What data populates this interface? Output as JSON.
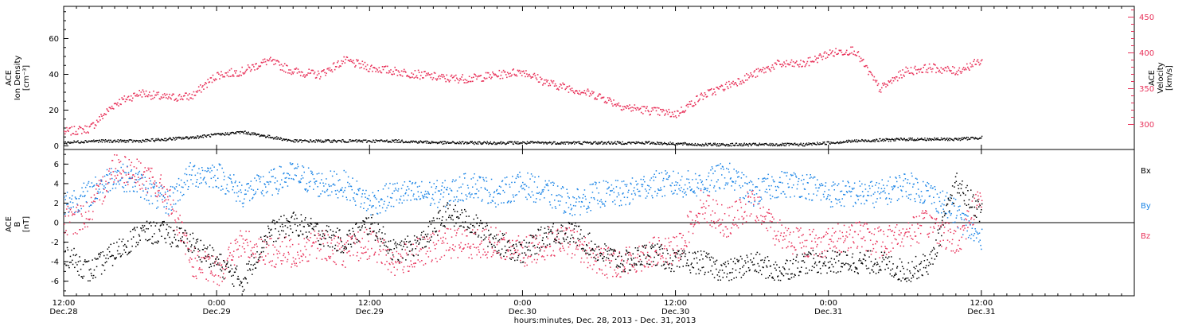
{
  "colors": {
    "axis": "#000000",
    "density": "#000000",
    "velocity": "#e8325a",
    "bx": "#000000",
    "by": "#1a84e6",
    "bz": "#e8325a"
  },
  "chart_data": [
    {
      "type": "scatter",
      "panel": "top",
      "ylabel_left": [
        "ACE",
        "Ion Density",
        "[cm⁻³]"
      ],
      "ylabel_right": [
        "ACE",
        "Velocity",
        "[km/s]"
      ],
      "x_range_hours": [
        0,
        84
      ],
      "x_data_end_hours": 72,
      "ylim_left": [
        -2,
        78
      ],
      "ylim_right": [
        265,
        465
      ],
      "yticks_left": [
        "0",
        "20",
        "40",
        "60"
      ],
      "yticks_right": [
        "300",
        "350",
        "400",
        "450"
      ],
      "series": [
        {
          "name": "Ion Density",
          "axis": "left",
          "color": "#000000",
          "x": [
            0,
            2,
            6,
            10,
            14,
            18,
            22,
            26,
            30,
            34,
            38,
            42,
            46,
            50,
            54,
            58,
            62,
            66,
            70,
            72
          ],
          "y": [
            2,
            3,
            3,
            5,
            8,
            3,
            3,
            3,
            2,
            2,
            2,
            2,
            2,
            1,
            1,
            1,
            3,
            4,
            4,
            5
          ]
        },
        {
          "name": "Velocity",
          "axis": "right",
          "color": "#e8325a",
          "x": [
            0,
            2,
            4,
            6,
            8,
            10,
            12,
            14,
            16,
            18,
            20,
            22,
            24,
            26,
            28,
            30,
            32,
            34,
            36,
            38,
            40,
            42,
            44,
            46,
            48,
            50,
            52,
            54,
            56,
            58,
            60,
            62,
            64,
            66,
            68,
            70,
            72
          ],
          "y": [
            290,
            295,
            330,
            345,
            338,
            340,
            370,
            375,
            390,
            375,
            370,
            390,
            380,
            375,
            370,
            365,
            365,
            370,
            375,
            358,
            350,
            340,
            325,
            320,
            315,
            340,
            355,
            370,
            385,
            385,
            400,
            405,
            350,
            375,
            380,
            375,
            390
          ]
        }
      ]
    },
    {
      "type": "scatter",
      "panel": "bottom",
      "ylabel_left": [
        "ACE",
        "B",
        "[nT]"
      ],
      "x_range_hours": [
        0,
        84
      ],
      "x_data_end_hours": 72,
      "ylim": [
        -7.5,
        7.5
      ],
      "yticks": [
        "-6",
        "-4",
        "-2",
        "0",
        "2",
        "4",
        "6"
      ],
      "series": [
        {
          "name": "Bx",
          "color": "#000000",
          "x": [
            0,
            2,
            4,
            6,
            8,
            10,
            12,
            14,
            16,
            18,
            20,
            22,
            24,
            26,
            28,
            30,
            32,
            34,
            36,
            38,
            40,
            42,
            44,
            46,
            48,
            50,
            52,
            54,
            56,
            58,
            60,
            62,
            64,
            66,
            68,
            70,
            72
          ],
          "y": [
            -3,
            -5,
            -3,
            -1,
            -1,
            -2,
            -4,
            -6,
            -1,
            0,
            -1,
            -2,
            0,
            -3,
            -2,
            1,
            0,
            -2,
            -3,
            -1,
            -1,
            -3,
            -4,
            -3,
            -4,
            -4,
            -5,
            -4,
            -5,
            -4,
            -4,
            -4,
            -4,
            -5,
            -4,
            4,
            1
          ]
        },
        {
          "name": "By",
          "color": "#1a84e6",
          "x": [
            0,
            2,
            4,
            6,
            8,
            10,
            12,
            14,
            16,
            18,
            20,
            22,
            24,
            26,
            28,
            30,
            32,
            34,
            36,
            38,
            40,
            42,
            44,
            46,
            48,
            50,
            52,
            54,
            56,
            58,
            60,
            62,
            64,
            66,
            68,
            70,
            72
          ],
          "y": [
            2,
            3,
            5,
            4,
            2,
            5,
            5,
            3,
            4,
            5,
            4,
            4,
            2,
            3,
            3,
            3,
            4,
            3,
            4,
            3,
            2,
            3,
            3,
            4,
            4,
            4,
            5,
            3,
            4,
            4,
            3,
            3,
            3,
            4,
            3,
            1,
            -2
          ]
        },
        {
          "name": "Bz",
          "color": "#e8325a",
          "x": [
            0,
            2,
            4,
            6,
            8,
            10,
            12,
            14,
            16,
            18,
            20,
            22,
            24,
            26,
            28,
            30,
            32,
            34,
            36,
            38,
            40,
            42,
            44,
            46,
            48,
            50,
            52,
            54,
            56,
            58,
            60,
            62,
            64,
            66,
            68,
            70,
            72
          ],
          "y": [
            0,
            1,
            6,
            5,
            3,
            -4,
            -5,
            -2,
            -3,
            -3,
            -2,
            -3,
            -2,
            -4,
            -3,
            -2,
            -2,
            -2,
            -3,
            -2,
            -2,
            -4,
            -4,
            -3,
            -3,
            2,
            0,
            2,
            -1,
            -2,
            -2,
            -1,
            -2,
            -1,
            0,
            -2,
            3
          ]
        }
      ],
      "legend": [
        "Bx",
        "By",
        "Bz"
      ],
      "zero_line": true
    }
  ],
  "x_axis": {
    "ticks": [
      {
        "time": "12:00",
        "date": "Dec.28"
      },
      {
        "time": "0:00",
        "date": "Dec.29"
      },
      {
        "time": "12:00",
        "date": "Dec.29"
      },
      {
        "time": "0:00",
        "date": "Dec.30"
      },
      {
        "time": "12:00",
        "date": "Dec.30"
      },
      {
        "time": "0:00",
        "date": "Dec.31"
      },
      {
        "time": "12:00",
        "date": "Dec.31"
      }
    ],
    "title": "hours:minutes, Dec. 28, 2013 - Dec. 31, 2013"
  }
}
